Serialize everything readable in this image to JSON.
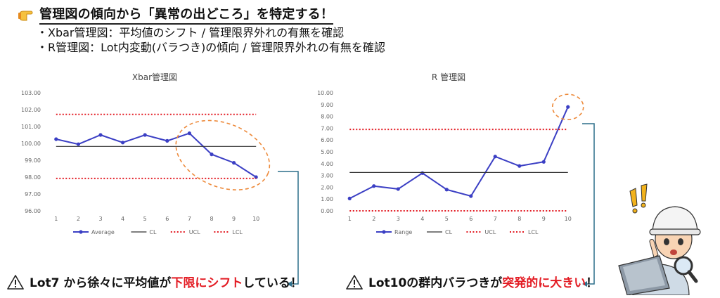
{
  "heading": {
    "icon": "pointing-hand-icon",
    "text": "管理図の傾向から「異常の出どころ」を特定する！"
  },
  "bullets": [
    "・Xbar管理図：平均値のシフト / 管理限界外れの有無を確認",
    "・R管理図：Lot内変動(バラつき)の傾向 / 管理限界外れの有無を確認"
  ],
  "colors": {
    "series": "#3b3fc4",
    "cl": "#333333",
    "limits": "#e31b23",
    "highlight": "#ed8a3b",
    "connector": "#2c6e8a"
  },
  "chart_data": [
    {
      "type": "line",
      "title": "Xbar管理図",
      "categories": [
        "1",
        "2",
        "3",
        "4",
        "5",
        "6",
        "7",
        "8",
        "9",
        "10"
      ],
      "ylim": [
        96,
        103
      ],
      "yticks": [
        "96.00",
        "97.00",
        "98.00",
        "99.00",
        "100.00",
        "101.00",
        "102.00",
        "103.00"
      ],
      "series": [
        {
          "name": "Average",
          "style": "line-marker",
          "values": [
            100.25,
            99.95,
            100.5,
            100.05,
            100.5,
            100.15,
            100.6,
            99.35,
            98.85,
            98.0
          ]
        },
        {
          "name": "CL",
          "style": "solid",
          "values": [
            99.82,
            99.82,
            99.82,
            99.82,
            99.82,
            99.82,
            99.82,
            99.82,
            99.82,
            99.82
          ]
        },
        {
          "name": "UCL",
          "style": "dotted",
          "values": [
            101.72,
            101.72,
            101.72,
            101.72,
            101.72,
            101.72,
            101.72,
            101.72,
            101.72,
            101.72
          ]
        },
        {
          "name": "LCL",
          "style": "dotted",
          "values": [
            97.92,
            97.92,
            97.92,
            97.92,
            97.92,
            97.92,
            97.92,
            97.92,
            97.92,
            97.92
          ]
        }
      ],
      "highlight": {
        "from": 7,
        "to": 10
      },
      "legend": "bottom"
    },
    {
      "type": "line",
      "title": "R 管理図",
      "categories": [
        "1",
        "2",
        "3",
        "4",
        "5",
        "6",
        "7",
        "8",
        "9",
        "10"
      ],
      "ylim": [
        0,
        10
      ],
      "yticks": [
        "0.00",
        "1.00",
        "2.00",
        "3.00",
        "4.00",
        "5.00",
        "6.00",
        "7.00",
        "8.00",
        "9.00",
        "10.00"
      ],
      "series": [
        {
          "name": "Range",
          "style": "line-marker",
          "values": [
            1.05,
            2.1,
            1.85,
            3.2,
            1.8,
            1.25,
            4.6,
            3.8,
            4.15,
            8.8
          ]
        },
        {
          "name": "CL",
          "style": "solid",
          "values": [
            3.25,
            3.25,
            3.25,
            3.25,
            3.25,
            3.25,
            3.25,
            3.25,
            3.25,
            3.25
          ]
        },
        {
          "name": "UCL",
          "style": "dotted",
          "values": [
            6.9,
            6.9,
            6.9,
            6.9,
            6.9,
            6.9,
            6.9,
            6.9,
            6.9,
            6.9
          ]
        },
        {
          "name": "LCL",
          "style": "dotted",
          "values": [
            0,
            0,
            0,
            0,
            0,
            0,
            0,
            0,
            0,
            0
          ]
        }
      ],
      "highlight": {
        "from": 10,
        "to": 10
      },
      "legend": "bottom"
    }
  ],
  "notes": [
    {
      "icon": "warning-icon",
      "pre": "Lot7 から徐々に平均値が",
      "red": "下限にシフト",
      "post": "している！"
    },
    {
      "icon": "warning-icon",
      "pre": "Lot10の群内バラつきが",
      "red": "突発的に大きい",
      "post": "！"
    }
  ],
  "illustration": {
    "icon": "engineer-with-magnifier-icon"
  }
}
